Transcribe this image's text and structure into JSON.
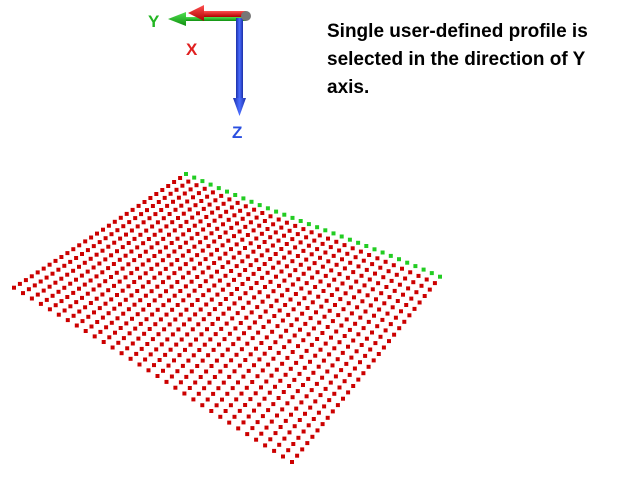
{
  "axes": {
    "x": {
      "label": "X",
      "color": "#e02020"
    },
    "y": {
      "label": "Y",
      "color": "#22b522"
    },
    "z": {
      "label": "Z",
      "color": "#2a4fe0"
    }
  },
  "caption": "Single user-defined profile is selected in the direction of Y axis.",
  "point_grid": {
    "point_color": "#cc0000",
    "selected_profile_color": "#22cc22",
    "rows": 30,
    "columns": 32,
    "selected_profile_row": 0,
    "selected_profile_direction": "Y"
  }
}
